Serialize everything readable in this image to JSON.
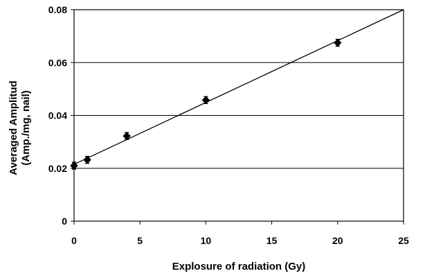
{
  "chart_data": {
    "type": "scatter",
    "xlabel": "Explosure of radiation (Gy)",
    "ylabel_lines": [
      "Averaged Amplitud",
      "(Amp./mg, nail)"
    ],
    "xlim": [
      0,
      25
    ],
    "ylim": [
      0,
      0.08
    ],
    "x_ticks": [
      "0",
      "5",
      "10",
      "15",
      "20",
      "25"
    ],
    "y_ticks": [
      "0",
      "0.02",
      "0.04",
      "0.06",
      "0.08"
    ],
    "grid": "horizontal",
    "legend": "none",
    "series": [
      {
        "marker": "diamond",
        "color": "#000000",
        "points": [
          {
            "x": 0,
            "y": 0.021,
            "err": 0.0013
          },
          {
            "x": 1,
            "y": 0.0232,
            "err": 0.0013
          },
          {
            "x": 4,
            "y": 0.0322,
            "err": 0.0013
          },
          {
            "x": 10,
            "y": 0.0458,
            "err": 0.0013
          },
          {
            "x": 20,
            "y": 0.0675,
            "err": 0.0013
          }
        ]
      }
    ],
    "trendline": {
      "type": "linear",
      "x": [
        0,
        25
      ],
      "y": [
        0.0215,
        0.08
      ]
    }
  }
}
